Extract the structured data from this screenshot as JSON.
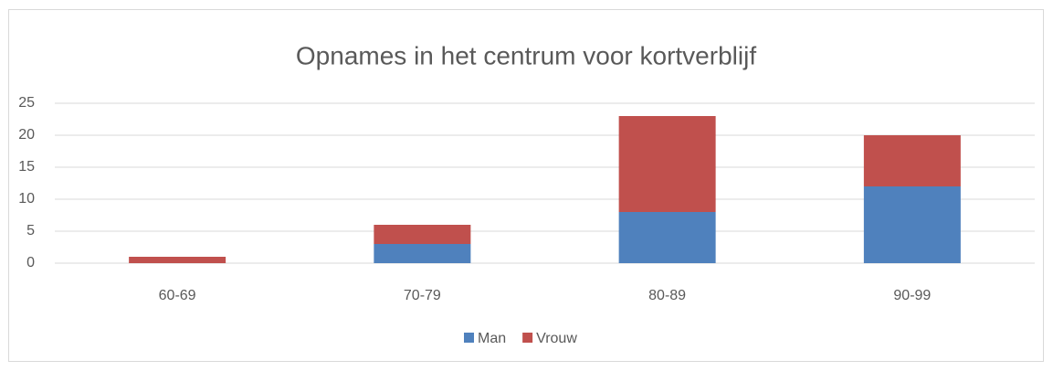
{
  "chart_data": {
    "type": "stacked_bar",
    "title": "Opnames in het centrum voor kortverblijf",
    "categories": [
      "60-69",
      "70-79",
      "80-89",
      "90-99"
    ],
    "series": [
      {
        "name": "Man",
        "color": "#4f81bd",
        "values": [
          0,
          3,
          8,
          12
        ]
      },
      {
        "name": "Vrouw",
        "color": "#c0504d",
        "values": [
          1,
          3,
          15,
          8
        ]
      }
    ],
    "ylim": [
      0,
      25
    ],
    "yticks": [
      0,
      5,
      10,
      15,
      20,
      25
    ],
    "grid": true,
    "legend": "bottom"
  }
}
